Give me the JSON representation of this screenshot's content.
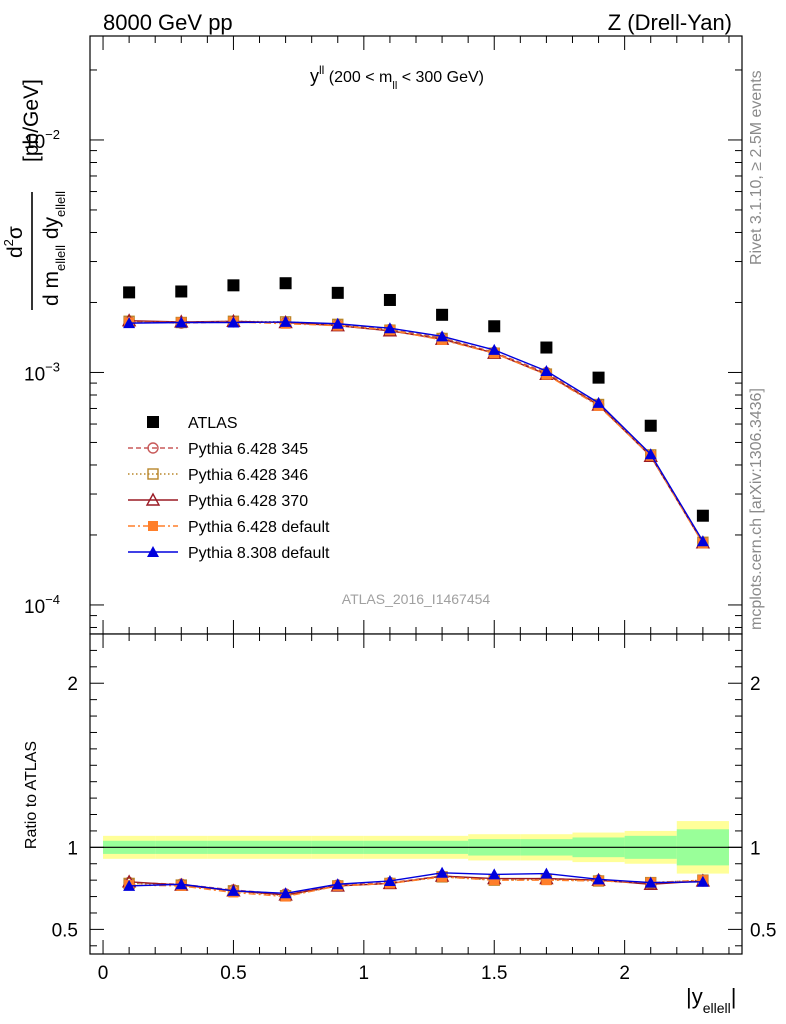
{
  "header": {
    "left": "8000 GeV pp",
    "right": "Z (Drell-Yan)"
  },
  "side_labels": {
    "rivet": "Rivet 3.1.10, ≥ 2.5M events",
    "mcplots": "mcplots.cern.ch [arXiv:1306.3436]"
  },
  "annotation": {
    "main": "y",
    "sup": "ll",
    "range_open": " (200 < m",
    "range_sub": "ll",
    "range_close": " < 300 GeV)"
  },
  "watermark": "ATLAS_2016_I1467454",
  "ylabel_top": {
    "num": "d",
    "num_sup": "2",
    "num_tail": "σ",
    "den": "d m",
    "den_sub1": "ellell",
    "den_mid": " dy",
    "den_sub2": "ellell",
    "unit": "[pb/GeV]"
  },
  "ylabel_bottom": "Ratio to ATLAS",
  "xlabel": {
    "main": "|y",
    "sub": "ellell",
    "close": "|"
  },
  "colors": {
    "atlas": "#000000",
    "p345": "#c85a5a",
    "p346": "#b8862a",
    "p370": "#9a1a24",
    "p6def": "#ff7f2a",
    "p8def": "#0000dd",
    "band_outer": "#ffff99",
    "band_inner": "#99ff99"
  },
  "chart_data": [
    {
      "type": "scatter",
      "ylog": true,
      "ylim": [
        7.5e-05,
        0.028
      ],
      "xlim": [
        -0.05,
        2.45
      ],
      "y_ticks": [
        {
          "value": 0.0001,
          "base": "10",
          "exp": "−4"
        },
        {
          "value": 0.001,
          "base": "10",
          "exp": "−3"
        },
        {
          "value": 0.01,
          "base": "10",
          "exp": "−2"
        }
      ],
      "legend_position": "left-center",
      "x": [
        0.1,
        0.3,
        0.5,
        0.7,
        0.9,
        1.1,
        1.3,
        1.5,
        1.7,
        1.9,
        2.1,
        2.3
      ],
      "series": [
        {
          "name": "ATLAS",
          "key": "atlas",
          "marker": "square",
          "line": "none",
          "values": [
            0.00221,
            0.00223,
            0.00237,
            0.00242,
            0.0022,
            0.00205,
            0.00177,
            0.00158,
            0.00128,
            0.00095,
            0.00059,
            0.000242
          ]
        },
        {
          "name": "Pythia 6.428 345",
          "key": "p345",
          "marker": "circle-open",
          "line": "dashed",
          "values": [
            0.00166,
            0.00163,
            0.00165,
            0.00164,
            0.00161,
            0.00153,
            0.00141,
            0.00122,
            0.000998,
            0.000728,
            0.00044,
            0.000186
          ]
        },
        {
          "name": "Pythia 6.428 346",
          "key": "p346",
          "marker": "square-open",
          "line": "dotted",
          "values": [
            0.00166,
            0.00164,
            0.00166,
            0.00165,
            0.00161,
            0.00152,
            0.0014,
            0.00121,
            0.000984,
            0.000728,
            0.000442,
            0.000186
          ]
        },
        {
          "name": "Pythia 6.428 370",
          "key": "p370",
          "marker": "triangle-open",
          "line": "solid",
          "values": [
            0.00167,
            0.00165,
            0.00166,
            0.00164,
            0.00159,
            0.00151,
            0.00139,
            0.00121,
            0.000982,
            0.000724,
            0.000436,
            0.000185
          ]
        },
        {
          "name": "Pythia 6.428 default",
          "key": "p6def",
          "marker": "square-filled",
          "line": "dashdot",
          "values": [
            0.00164,
            0.00164,
            0.00165,
            0.00162,
            0.00159,
            0.00152,
            0.00138,
            0.00121,
            0.000978,
            0.000718,
            0.000438,
            0.000184
          ]
        },
        {
          "name": "Pythia 8.308 default",
          "key": "p8def",
          "marker": "triangle-filled",
          "line": "solid",
          "values": [
            0.00163,
            0.00164,
            0.00164,
            0.00165,
            0.00162,
            0.00155,
            0.00143,
            0.00125,
            0.001015,
            0.00074,
            0.000445,
            0.000188
          ]
        }
      ]
    },
    {
      "type": "line",
      "ylim": [
        0.35,
        2.3
      ],
      "xlim": [
        -0.05,
        2.45
      ],
      "y_ticks": [
        {
          "value": 0.5,
          "label": "0.5"
        },
        {
          "value": 1,
          "label": "1"
        },
        {
          "value": 2,
          "label": "2"
        }
      ],
      "x_ticks": [
        {
          "value": 0,
          "label": "0"
        },
        {
          "value": 0.5,
          "label": "0.5"
        },
        {
          "value": 1,
          "label": "1"
        },
        {
          "value": 1.5,
          "label": "1.5"
        },
        {
          "value": 2,
          "label": "2"
        }
      ],
      "x": [
        0.1,
        0.3,
        0.5,
        0.7,
        0.9,
        1.1,
        1.3,
        1.5,
        1.7,
        1.9,
        2.1,
        2.3
      ],
      "band_edges": [
        0,
        0.2,
        0.4,
        0.6,
        0.8,
        1.0,
        1.2,
        1.4,
        1.6,
        1.8,
        2.0,
        2.2,
        2.4
      ],
      "band_outer": [
        0.07,
        0.07,
        0.07,
        0.07,
        0.07,
        0.07,
        0.07,
        0.08,
        0.08,
        0.09,
        0.1,
        0.16
      ],
      "band_inner": [
        0.04,
        0.04,
        0.04,
        0.04,
        0.04,
        0.04,
        0.04,
        0.05,
        0.05,
        0.06,
        0.07,
        0.11
      ],
      "series": [
        {
          "key": "p345",
          "values": [
            0.785,
            0.775,
            0.74,
            0.715,
            0.77,
            0.785,
            0.825,
            0.805,
            0.81,
            0.8,
            0.78,
            0.795
          ]
        },
        {
          "key": "p346",
          "values": [
            0.78,
            0.77,
            0.735,
            0.705,
            0.765,
            0.78,
            0.82,
            0.8,
            0.805,
            0.795,
            0.785,
            0.8
          ]
        },
        {
          "key": "p370",
          "values": [
            0.79,
            0.77,
            0.735,
            0.71,
            0.765,
            0.78,
            0.825,
            0.81,
            0.81,
            0.8,
            0.775,
            0.795
          ]
        },
        {
          "key": "p6def",
          "values": [
            0.77,
            0.765,
            0.725,
            0.7,
            0.765,
            0.78,
            0.82,
            0.8,
            0.8,
            0.795,
            0.785,
            0.8
          ]
        },
        {
          "key": "p8def",
          "values": [
            0.765,
            0.775,
            0.735,
            0.72,
            0.775,
            0.795,
            0.845,
            0.835,
            0.84,
            0.805,
            0.785,
            0.79
          ]
        }
      ]
    }
  ]
}
